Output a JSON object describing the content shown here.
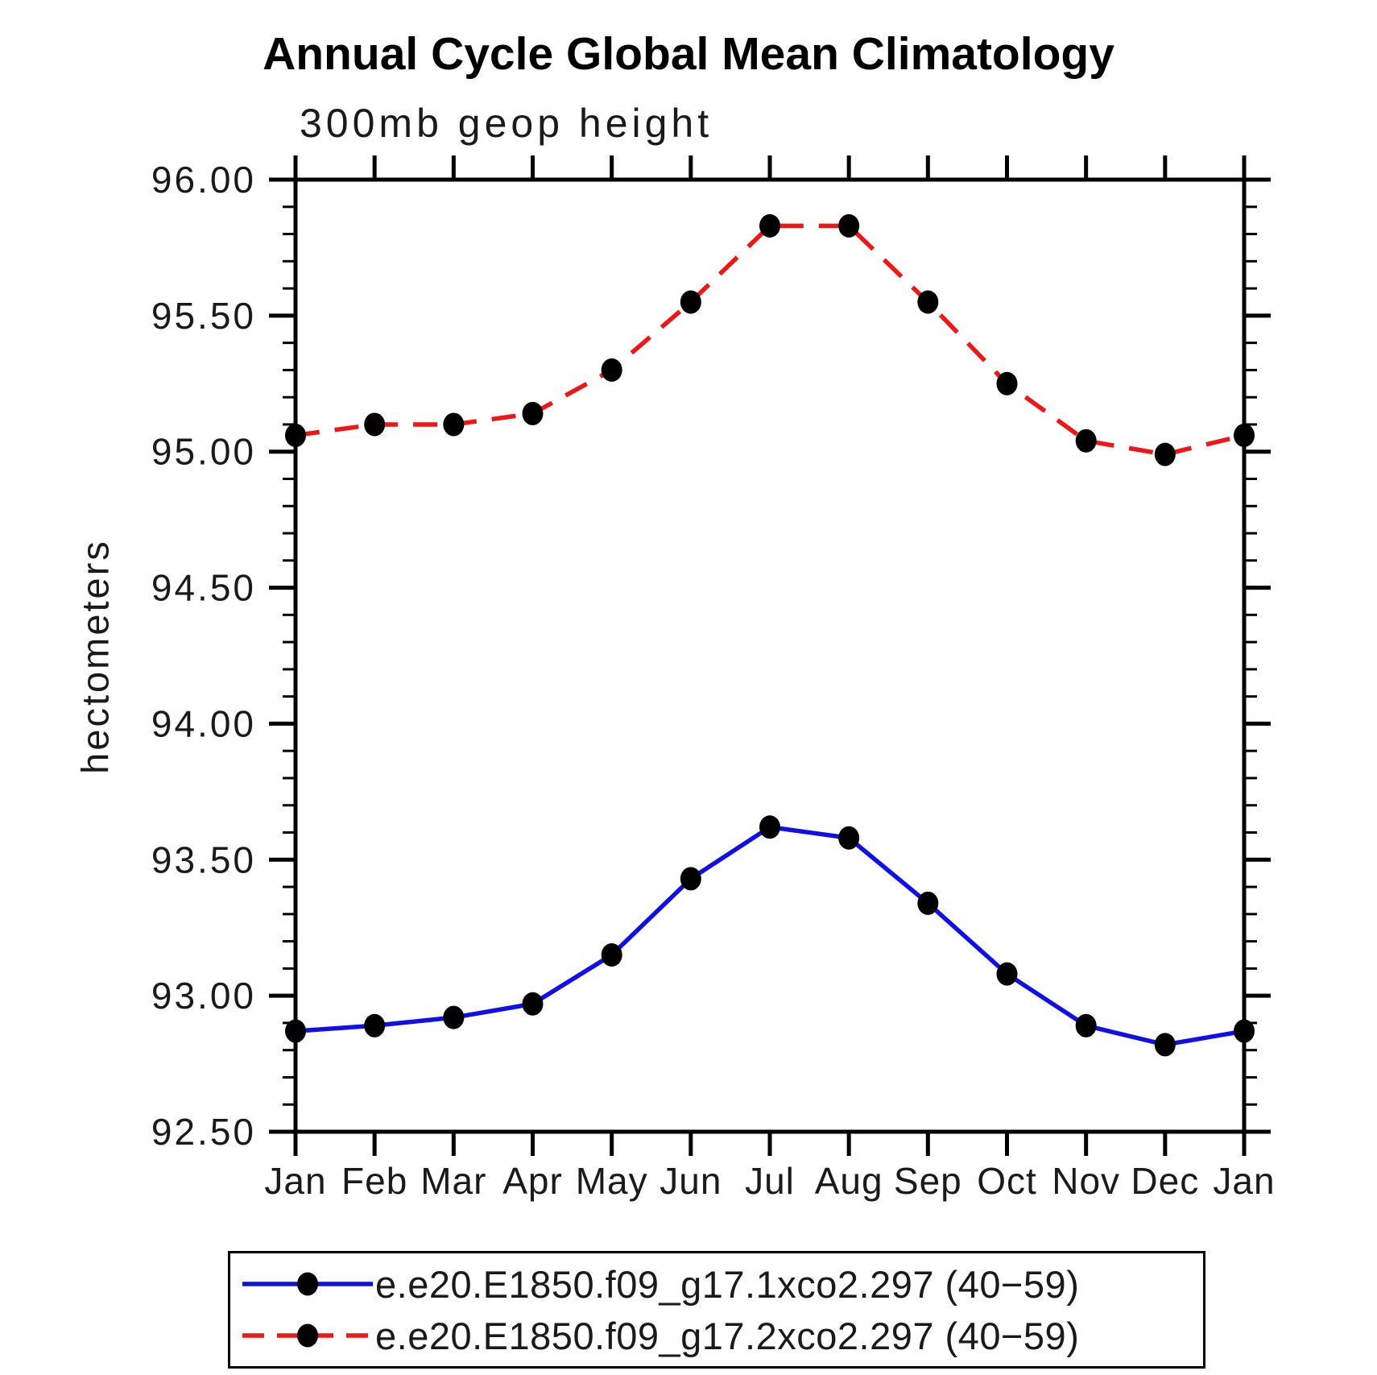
{
  "title": "Annual Cycle Global Mean Climatology",
  "subtitle": "300mb geop height",
  "chart_data": {
    "type": "line",
    "title": "Annual Cycle Global Mean Climatology",
    "subtitle": "300mb geop height",
    "ylabel": "hectometers",
    "ylim": [
      92.5,
      96.0
    ],
    "ytick_step": 0.5,
    "yminor_step": 0.1,
    "ytick_labels": [
      "96.00",
      "95.50",
      "95.00",
      "94.50",
      "94.00",
      "93.50",
      "93.00",
      "92.50"
    ],
    "categories": [
      "Jan",
      "Feb",
      "Mar",
      "Apr",
      "May",
      "Jun",
      "Jul",
      "Aug",
      "Sep",
      "Oct",
      "Nov",
      "Dec",
      "Jan"
    ],
    "grid": false,
    "legend_position": "bottom",
    "marker": "black-dot",
    "series": [
      {
        "name": "e.e20.E1850.f09_g17.1xco2.297 (40−59)",
        "color": "#0f10e8",
        "style": "solid",
        "values": [
          92.87,
          92.89,
          92.92,
          92.97,
          93.15,
          93.43,
          93.62,
          93.58,
          93.34,
          93.08,
          92.89,
          92.82,
          92.87
        ]
      },
      {
        "name": "e.e20.E1850.f09_g17.2xco2.297 (40−59)",
        "color": "#f11616",
        "style": "dashed",
        "values": [
          95.06,
          95.1,
          95.1,
          95.14,
          95.3,
          95.55,
          95.83,
          95.83,
          95.55,
          95.25,
          95.04,
          94.99,
          95.06
        ]
      }
    ]
  }
}
